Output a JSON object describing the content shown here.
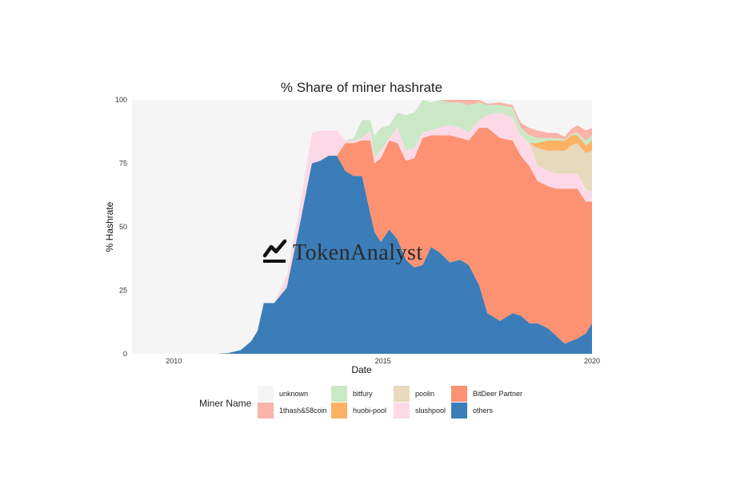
{
  "chart_data": {
    "type": "area",
    "stacked": true,
    "normalized_percent": true,
    "title": "% Share of miner hashrate",
    "xlabel": "Date",
    "ylabel": "% Hashrate",
    "xlim": [
      2009.0,
      2020.0
    ],
    "ylim": [
      0,
      100
    ],
    "x_ticks": [
      2010,
      2015,
      2020
    ],
    "x_tick_labels": [
      "2010",
      "2015",
      "2020"
    ],
    "y_ticks": [
      0,
      25,
      50,
      75,
      100
    ],
    "y_tick_labels": [
      "0",
      "25",
      "50",
      "75",
      "100"
    ],
    "legend_title": "Miner Name",
    "legend_position": "bottom",
    "x": [
      2009.0,
      2011.0,
      2011.3,
      2011.6,
      2011.85,
      2012.0,
      2012.15,
      2012.4,
      2012.7,
      2013.0,
      2013.3,
      2013.5,
      2013.7,
      2013.9,
      2014.1,
      2014.3,
      2014.5,
      2014.7,
      2014.8,
      2014.95,
      2015.15,
      2015.35,
      2015.55,
      2015.75,
      2015.95,
      2016.15,
      2016.35,
      2016.6,
      2016.85,
      2017.05,
      2017.3,
      2017.5,
      2017.8,
      2018.1,
      2018.3,
      2018.5,
      2018.7,
      2018.95,
      2019.15,
      2019.35,
      2019.5,
      2019.65,
      2019.85,
      2020.0
    ],
    "series": [
      {
        "name": "others",
        "color": "#3a7db8",
        "values": [
          0,
          0,
          0.3,
          1.5,
          5,
          9,
          20,
          20,
          26,
          50,
          75,
          76,
          78,
          78,
          72,
          70,
          70,
          55,
          48,
          44,
          49,
          45,
          37,
          34,
          35,
          42,
          40,
          36,
          37,
          35,
          27,
          16,
          13,
          16,
          15,
          12,
          12,
          10,
          7,
          4,
          5,
          6,
          8,
          12
        ]
      },
      {
        "name": "BitDeer Partner",
        "color": "#fc9272",
        "values": [
          0,
          0,
          0,
          0,
          0,
          0,
          0,
          0,
          0,
          0,
          0,
          0,
          0,
          0,
          11,
          13,
          14,
          29,
          27,
          33,
          35,
          38,
          39,
          43,
          50,
          44,
          46,
          50,
          48,
          49,
          62,
          73,
          72,
          68,
          63,
          62,
          56,
          56,
          58,
          61,
          60,
          59,
          52,
          48
        ]
      },
      {
        "name": "slushpool",
        "color": "#fdd9e8",
        "values": [
          0,
          0,
          0,
          0,
          0,
          0,
          0,
          0,
          5,
          7,
          12,
          12,
          10,
          10,
          1,
          1,
          1,
          4,
          2,
          3,
          1,
          6,
          4,
          4,
          2,
          2,
          3,
          4,
          4,
          3,
          3,
          5,
          10,
          9,
          8,
          9,
          6,
          6,
          6,
          6,
          6,
          6,
          5,
          4
        ]
      },
      {
        "name": "poolin",
        "color": "#e6d9bc",
        "values": [
          0,
          0,
          0,
          0,
          0,
          0,
          0,
          0,
          0,
          0,
          0,
          0,
          0,
          0,
          0,
          0,
          0,
          0,
          0,
          0,
          0,
          0,
          0,
          0,
          0,
          0,
          0,
          0,
          0,
          0,
          0,
          0,
          0,
          0,
          0,
          0,
          7,
          8,
          9,
          9,
          11,
          12,
          14,
          16
        ]
      },
      {
        "name": "huobi-pool",
        "color": "#fdb163",
        "values": [
          0,
          0,
          0,
          0,
          0,
          0,
          0,
          0,
          0,
          0,
          0,
          0,
          0,
          0,
          0,
          0,
          0,
          0,
          0,
          0,
          0,
          0,
          0,
          0,
          0,
          0,
          0,
          0,
          0,
          0,
          0,
          0,
          0,
          0,
          0,
          0,
          2,
          4,
          4,
          4,
          4,
          3,
          3,
          4
        ]
      },
      {
        "name": "bitfury",
        "color": "#cbe8c6",
        "values": [
          0,
          0,
          0,
          0,
          0,
          0,
          0,
          0,
          0,
          0,
          0,
          0,
          0,
          0,
          0,
          1,
          7,
          4,
          9,
          9,
          5,
          6,
          14,
          14,
          13,
          11,
          12,
          9,
          10,
          11,
          7,
          4,
          3,
          4,
          3,
          3,
          2,
          1,
          1,
          0.5,
          0.5,
          1,
          2,
          2
        ]
      },
      {
        "name": "1thash&58coin",
        "color": "#fbb2a8",
        "values": [
          0,
          0,
          0,
          0,
          0,
          0,
          0,
          0,
          0,
          0,
          0,
          0,
          0,
          0,
          0,
          0,
          0,
          0,
          0,
          0,
          0,
          0,
          0,
          0,
          0,
          0,
          0,
          1,
          1,
          2,
          1,
          0.5,
          1,
          1,
          2,
          3,
          3,
          2,
          2,
          1,
          2,
          3,
          4,
          3
        ]
      },
      {
        "name": "unknown",
        "color": "#f6f5f6",
        "values": [
          100,
          100,
          99.7,
          98.5,
          95,
          91,
          80,
          80,
          69,
          43,
          13,
          12,
          12,
          12,
          16,
          15,
          8,
          8,
          14,
          11,
          10,
          5,
          6,
          5,
          0,
          1,
          0,
          0,
          0,
          0,
          0,
          1.5,
          1,
          2,
          9,
          11,
          12,
          13,
          13,
          14.5,
          11.5,
          10,
          12,
          11
        ]
      }
    ],
    "legend_order": [
      "unknown",
      "1thash&58coin",
      "bitfury",
      "huobi-pool",
      "poolin",
      "slushpool",
      "BitDeer Partner",
      "others"
    ]
  }
}
